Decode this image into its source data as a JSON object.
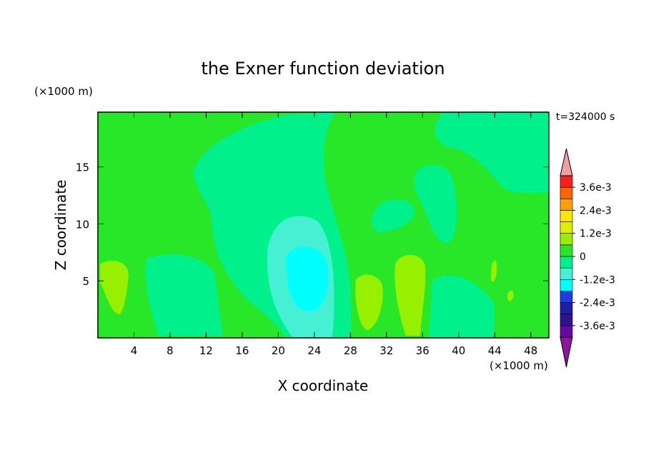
{
  "chart_data": {
    "type": "contour",
    "title": "the Exner function deviation",
    "xlabel": "X coordinate",
    "ylabel": "Z coordinate",
    "x_unit": "(×1000 m)",
    "y_unit": "(×1000 m)",
    "annotation": "t=324000 s",
    "xlim": [
      0,
      50
    ],
    "ylim": [
      0,
      19.8
    ],
    "xticks": [
      4,
      8,
      12,
      16,
      20,
      24,
      28,
      32,
      36,
      40,
      44,
      48
    ],
    "yticks": [
      5,
      10,
      15
    ],
    "colorbar": {
      "bounds": [
        -0.0042,
        -0.0036,
        -0.003,
        -0.0024,
        -0.0018,
        -0.0012,
        -0.0006,
        0,
        0.0006,
        0.0012,
        0.0018,
        0.0024,
        0.003,
        0.0036,
        0.0042
      ],
      "colors": [
        "#640aa0",
        "#2d148c",
        "#1e1ea0",
        "#1e3cdc",
        "#00ffff",
        "#46f0d2",
        "#00f08c",
        "#28e628",
        "#96f000",
        "#dcf000",
        "#ffe600",
        "#ffa000",
        "#ff6400",
        "#ff1e1e"
      ],
      "under_color": "#8c14a0",
      "over_color": "#f0a0a0",
      "ticks": [
        {
          "value": 0.0036,
          "label": "3.6e-3"
        },
        {
          "value": 0.0024,
          "label": "2.4e-3"
        },
        {
          "value": 0.0012,
          "label": "1.2e-3"
        },
        0,
        {
          "value": -0.0012,
          "label": "-1.2e-3"
        },
        {
          "value": -0.0024,
          "label": "-2.4e-3"
        },
        {
          "value": -0.0036,
          "label": "-3.6e-3"
        }
      ]
    }
  }
}
